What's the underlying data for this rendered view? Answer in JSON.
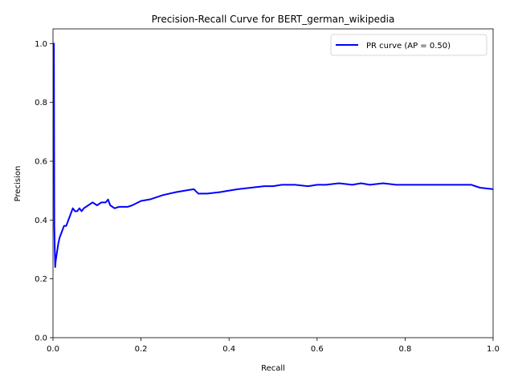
{
  "chart_data": {
    "type": "line",
    "title": "Precision-Recall Curve for BERT_german_wikipedia",
    "xlabel": "Recall",
    "ylabel": "Precision",
    "xlim": [
      0.0,
      1.0
    ],
    "ylim": [
      0.0,
      1.05
    ],
    "xticks": [
      "0.0",
      "0.2",
      "0.4",
      "0.6",
      "0.8",
      "1.0"
    ],
    "yticks": [
      "0.0",
      "0.2",
      "0.4",
      "0.6",
      "0.8",
      "1.0"
    ],
    "grid": false,
    "legend_position": "top-right",
    "series": [
      {
        "name": "PR curve (AP = 0.50)",
        "color": "#0000ff",
        "x": [
          0.0,
          0.002,
          0.003,
          0.004,
          0.005,
          0.006,
          0.008,
          0.01,
          0.012,
          0.015,
          0.02,
          0.025,
          0.03,
          0.035,
          0.04,
          0.045,
          0.05,
          0.055,
          0.06,
          0.065,
          0.07,
          0.08,
          0.09,
          0.1,
          0.11,
          0.12,
          0.125,
          0.13,
          0.14,
          0.15,
          0.16,
          0.17,
          0.18,
          0.2,
          0.22,
          0.25,
          0.28,
          0.3,
          0.32,
          0.33,
          0.35,
          0.38,
          0.4,
          0.42,
          0.45,
          0.48,
          0.5,
          0.52,
          0.55,
          0.58,
          0.6,
          0.62,
          0.65,
          0.68,
          0.7,
          0.72,
          0.75,
          0.78,
          0.8,
          0.82,
          0.85,
          0.88,
          0.9,
          0.92,
          0.95,
          0.97,
          1.0
        ],
        "y": [
          1.0,
          1.0,
          0.38,
          0.3,
          0.24,
          0.26,
          0.28,
          0.3,
          0.32,
          0.34,
          0.36,
          0.38,
          0.38,
          0.4,
          0.42,
          0.44,
          0.43,
          0.43,
          0.44,
          0.43,
          0.44,
          0.45,
          0.46,
          0.45,
          0.46,
          0.46,
          0.47,
          0.45,
          0.44,
          0.445,
          0.445,
          0.445,
          0.45,
          0.465,
          0.47,
          0.485,
          0.495,
          0.5,
          0.505,
          0.49,
          0.49,
          0.495,
          0.5,
          0.505,
          0.51,
          0.515,
          0.515,
          0.52,
          0.52,
          0.515,
          0.52,
          0.52,
          0.525,
          0.52,
          0.525,
          0.52,
          0.525,
          0.52,
          0.52,
          0.52,
          0.52,
          0.52,
          0.52,
          0.52,
          0.52,
          0.51,
          0.505
        ]
      }
    ]
  }
}
